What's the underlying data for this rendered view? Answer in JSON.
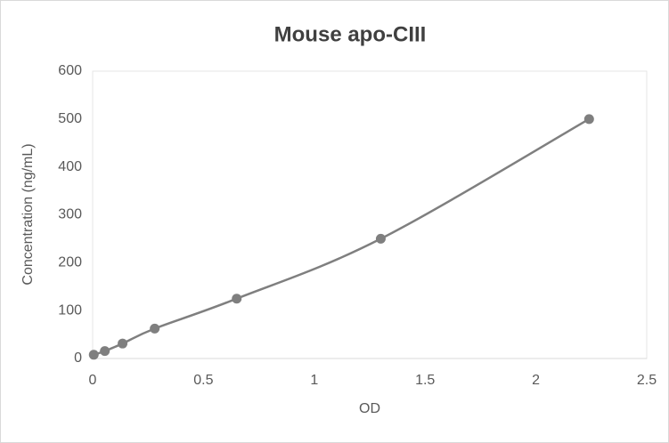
{
  "chart_data": {
    "type": "line",
    "title": "Mouse apo-CIII",
    "x_label": "OD",
    "y_label": "Concentration (ng/mL)",
    "x": [
      0.005,
      0.055,
      0.135,
      0.28,
      0.65,
      1.3,
      2.24
    ],
    "series": [
      {
        "name": "Mouse apo-CIII",
        "color": "#7f7f7f",
        "values": [
          7.8,
          15.6,
          31.25,
          62.5,
          125,
          250,
          500
        ]
      }
    ],
    "xlim": [
      0,
      2.5
    ],
    "xticks": [
      0,
      0.5,
      1,
      1.5,
      2,
      2.5
    ],
    "ylim": [
      0,
      600
    ],
    "yticks": [
      0,
      100,
      200,
      300,
      400,
      500,
      600
    ],
    "grid": false,
    "smooth": true,
    "markers": true
  }
}
